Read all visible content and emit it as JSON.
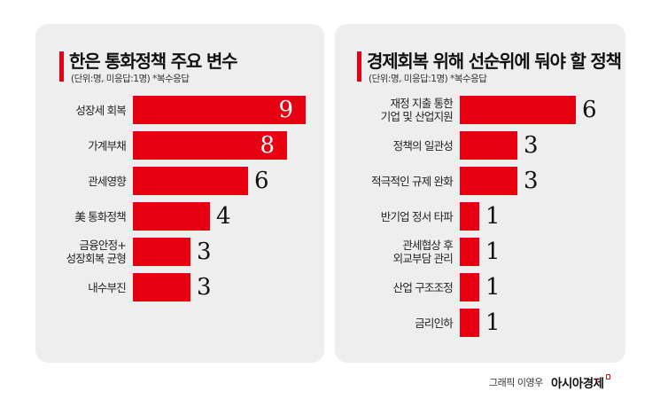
{
  "left_chart": {
    "title": "한은 통화정책 주요 변수",
    "subtitle": "(단위:명, 미응답:1명) *복수응답",
    "items": [
      {
        "label": "성장세 회복",
        "value": "9"
      },
      {
        "label": "가계부채",
        "value": "8"
      },
      {
        "label": "관세영향",
        "value": "6"
      },
      {
        "label": "美 통화정책",
        "value": "4"
      },
      {
        "label": "금융안정+\n성장회복 균형",
        "line1": "금융안정+",
        "line2": "성장회복 균형",
        "value": "3"
      },
      {
        "label": "내수부진",
        "value": "3"
      }
    ]
  },
  "right_chart": {
    "title": "경제회복 위해 선순위에 둬야 할 정책",
    "subtitle": "(단위:명, 미응답:1명) *복수응답",
    "items": [
      {
        "label": "재정 지출 통한\n기업 및 산업지원",
        "line1": "재정 지출 통한",
        "line2": "기업 및 산업지원",
        "value": "6"
      },
      {
        "label": "정책의 일관성",
        "value": "3"
      },
      {
        "label": "적극적인 규제 완화",
        "value": "3"
      },
      {
        "label": "반기업 정서 타파",
        "value": "1"
      },
      {
        "label": "관세협상 후\n외교부담 관리",
        "line1": "관세협상 후",
        "line2": "외교부담 관리",
        "value": "1"
      },
      {
        "label": "산업 구조조정",
        "value": "1"
      },
      {
        "label": "금리인하",
        "value": "1"
      }
    ]
  },
  "footer": {
    "credit": "그래픽 이영우",
    "brand": "아시아경제"
  },
  "colors": {
    "bar": "#e60012",
    "panel": "#eeeeee",
    "accent": "#e60012"
  },
  "chart_data": [
    {
      "type": "bar",
      "orientation": "horizontal",
      "title": "한은 통화정책 주요 변수",
      "subtitle": "(단위:명, 미응답:1명) *복수응답",
      "categories": [
        "성장세 회복",
        "가계부채",
        "관세영향",
        "美 통화정책",
        "금융안정+성장회복 균형",
        "내수부진"
      ],
      "values": [
        9,
        8,
        6,
        4,
        3,
        3
      ],
      "xlabel": "",
      "ylabel": "",
      "unit": "명",
      "grid": false,
      "legend": null
    },
    {
      "type": "bar",
      "orientation": "horizontal",
      "title": "경제회복 위해 선순위에 둬야 할 정책",
      "subtitle": "(단위:명, 미응답:1명) *복수응답",
      "categories": [
        "재정 지출 통한 기업 및 산업지원",
        "정책의 일관성",
        "적극적인 규제 완화",
        "반기업 정서 타파",
        "관세협상 후 외교부담 관리",
        "산업 구조조정",
        "금리인하"
      ],
      "values": [
        6,
        3,
        3,
        1,
        1,
        1,
        1
      ],
      "xlabel": "",
      "ylabel": "",
      "unit": "명",
      "grid": false,
      "legend": null
    }
  ]
}
